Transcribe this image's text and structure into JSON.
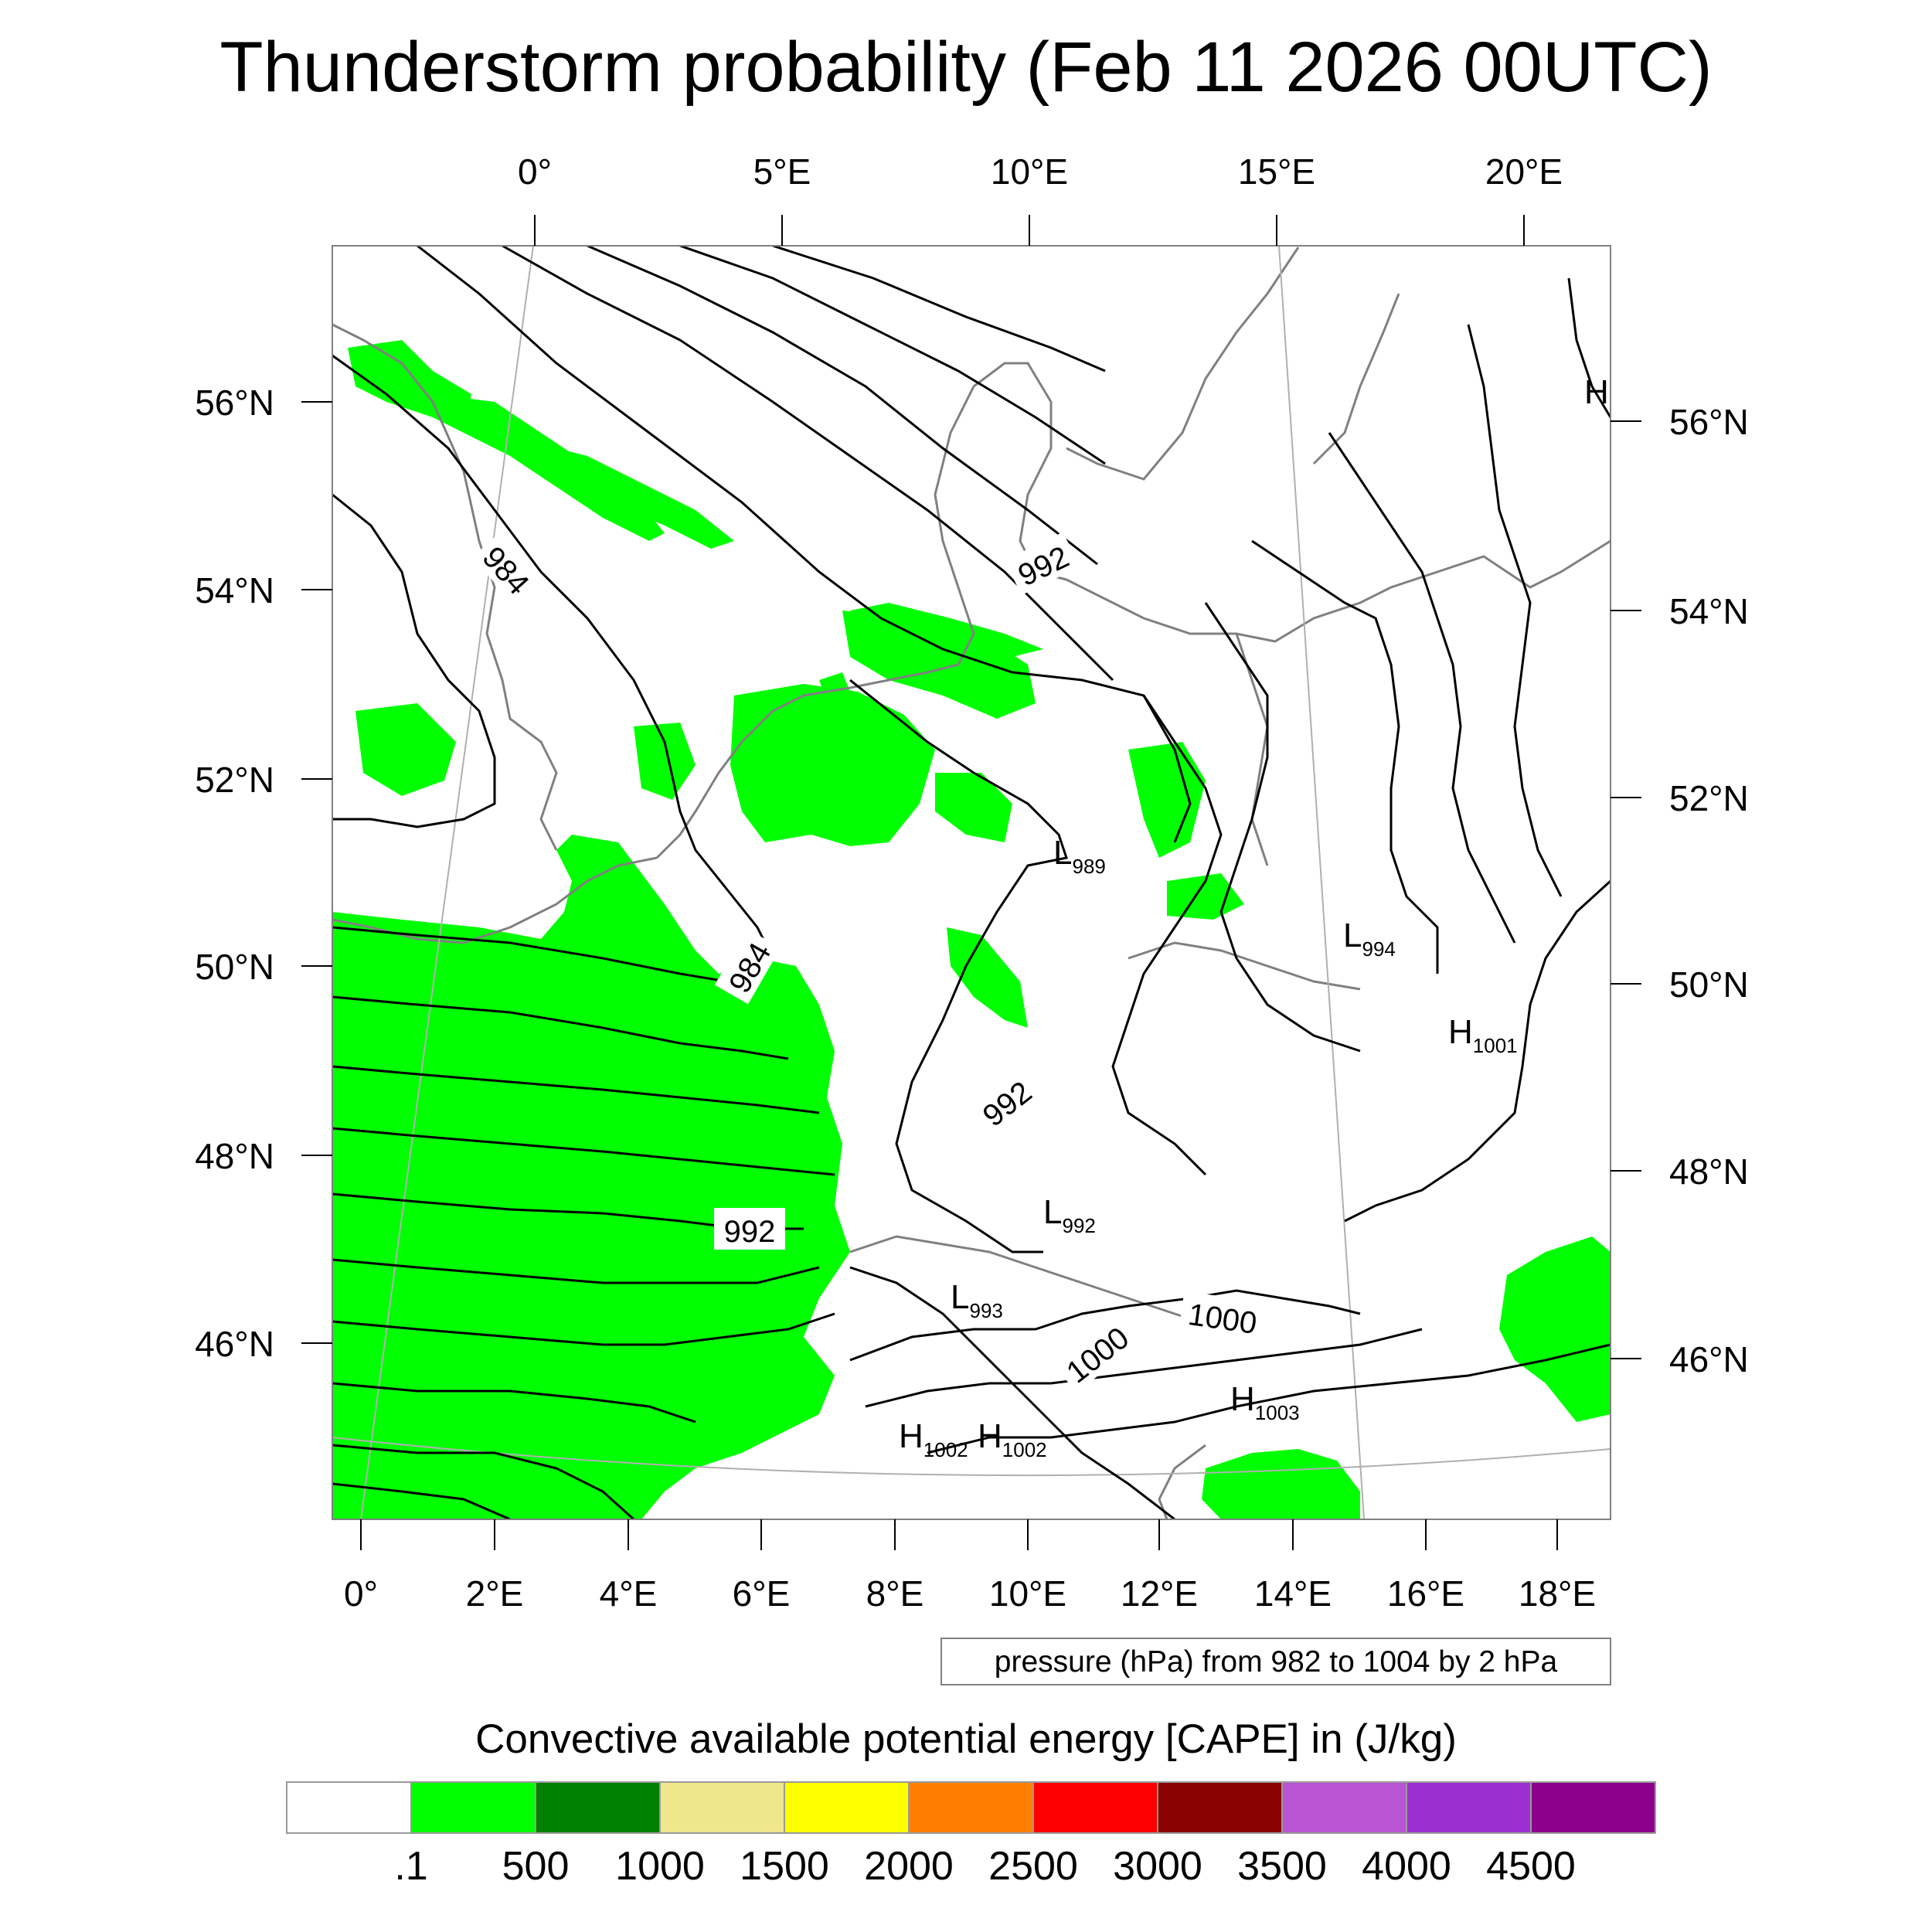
{
  "title": "Thunderstorm probability (Feb 11 2026 00UTC)",
  "map": {
    "top_lon_labels": [
      "0°",
      "5°E",
      "10°E",
      "15°E",
      "20°E"
    ],
    "bottom_lon_labels": [
      "0°",
      "2°E",
      "4°E",
      "6°E",
      "8°E",
      "10°E",
      "12°E",
      "14°E",
      "16°E",
      "18°E"
    ],
    "left_lat_labels": [
      "56°N",
      "54°N",
      "52°N",
      "50°N",
      "48°N",
      "46°N"
    ],
    "right_lat_labels": [
      "56°N",
      "54°N",
      "52°N",
      "50°N",
      "48°N",
      "46°N"
    ],
    "contour_labels": [
      "984",
      "984",
      "992",
      "992",
      "992",
      "1000",
      "1000"
    ],
    "pressure_centers": [
      {
        "letter": "L",
        "value": "989"
      },
      {
        "letter": "L",
        "value": "994"
      },
      {
        "letter": "H",
        "value": "1001"
      },
      {
        "letter": "L",
        "value": "992"
      },
      {
        "letter": "L",
        "value": "993"
      },
      {
        "letter": "H",
        "value": "1003"
      },
      {
        "letter": "H",
        "value": "1002"
      },
      {
        "letter": "H",
        "value": "1002"
      },
      {
        "letter": "H",
        "value": ""
      }
    ],
    "colors": {
      "cape_fill": "#00ff00",
      "isobar": "#000000",
      "coastline": "#808080",
      "graticule": "#b0b0b0"
    }
  },
  "contour_info": "pressure (hPa) from 982 to 1004 by 2 hPa",
  "colorbar": {
    "title": "Convective available potential energy [CAPE] in (J/kg)",
    "labels": [
      ".1",
      "500",
      "1000",
      "1500",
      "2000",
      "2500",
      "3000",
      "3500",
      "4000",
      "4500"
    ],
    "colors": [
      "#ffffff",
      "#00ff00",
      "#007f00",
      "#f0e68c",
      "#ffff00",
      "#ff8000",
      "#ff0000",
      "#8b0000",
      "#b954d3",
      "#9b30d1",
      "#8b008b"
    ]
  }
}
